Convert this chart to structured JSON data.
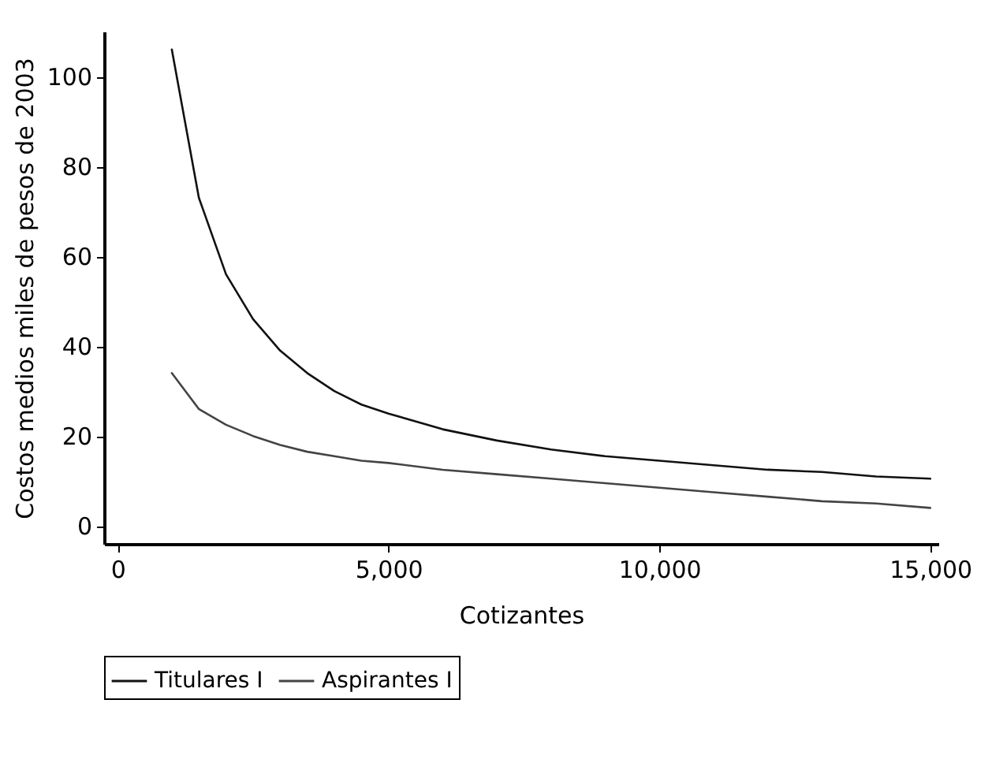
{
  "chart_data": {
    "type": "line",
    "xlabel": "Cotizantes",
    "ylabel": "Costos medios miles de pesos de 2003",
    "x": [
      1000,
      1500,
      2000,
      2500,
      3000,
      3500,
      4000,
      4500,
      5000,
      6000,
      7000,
      8000,
      9000,
      10000,
      11000,
      12000,
      13000,
      14000,
      15000
    ],
    "series": [
      {
        "name": "Titulares I",
        "color": "#111111",
        "values": [
          106,
          73,
          56,
          46,
          39,
          34,
          30,
          27,
          25,
          21.5,
          19,
          17,
          15.5,
          14.5,
          13.5,
          12.5,
          12,
          11,
          10.5
        ]
      },
      {
        "name": "Aspirantes I",
        "color": "#444444",
        "values": [
          34,
          26,
          22.5,
          20,
          18,
          16.5,
          15.5,
          14.5,
          14,
          12.5,
          11.5,
          10.5,
          9.5,
          8.5,
          7.5,
          6.5,
          5.5,
          5,
          4
        ]
      }
    ],
    "xlim": [
      -250,
      15150
    ],
    "ylim": [
      -4,
      110
    ],
    "xticks": [
      0,
      {
        "value": 5000,
        "label": "5,000"
      },
      {
        "value": 10000,
        "label": "10,000"
      },
      {
        "value": 15000,
        "label": "15,000"
      }
    ],
    "yticks": [
      0,
      20,
      40,
      60,
      80,
      100
    ],
    "grid": false,
    "legend": "bottom",
    "marker": "none",
    "line_style": "solid"
  }
}
